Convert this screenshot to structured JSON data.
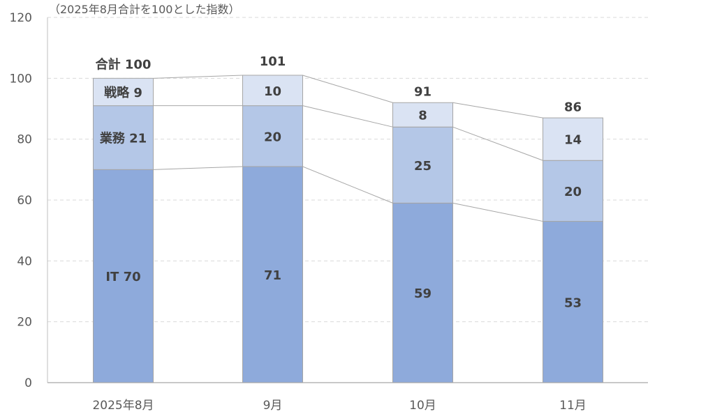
{
  "chart_data": {
    "type": "bar",
    "stacked": true,
    "note": "（2025年8月合計を100とした指数）",
    "categories": [
      "2025年8月",
      "9月",
      "10月",
      "11月"
    ],
    "series": [
      {
        "name": "IT",
        "values": [
          70,
          71,
          59,
          53
        ],
        "color": "#8eaadb",
        "labels": [
          "IT 70",
          "71",
          "59",
          "53"
        ]
      },
      {
        "name": "業務",
        "values": [
          21,
          20,
          25,
          20
        ],
        "color": "#b4c7e7",
        "labels": [
          "業務 21",
          "20",
          "25",
          "20"
        ]
      },
      {
        "name": "戦略",
        "values": [
          9,
          10,
          8,
          14
        ],
        "color": "#dae3f3",
        "labels": [
          "戦略 9",
          "10",
          "8",
          "14"
        ]
      }
    ],
    "totals": [
      "合計 100",
      "101",
      "91",
      "86"
    ],
    "total_values": [
      100,
      101,
      91,
      86
    ],
    "ylim": [
      0,
      120
    ],
    "yticks": [
      0,
      20,
      40,
      60,
      80,
      100,
      120
    ],
    "grid": true,
    "series_lines": true
  }
}
